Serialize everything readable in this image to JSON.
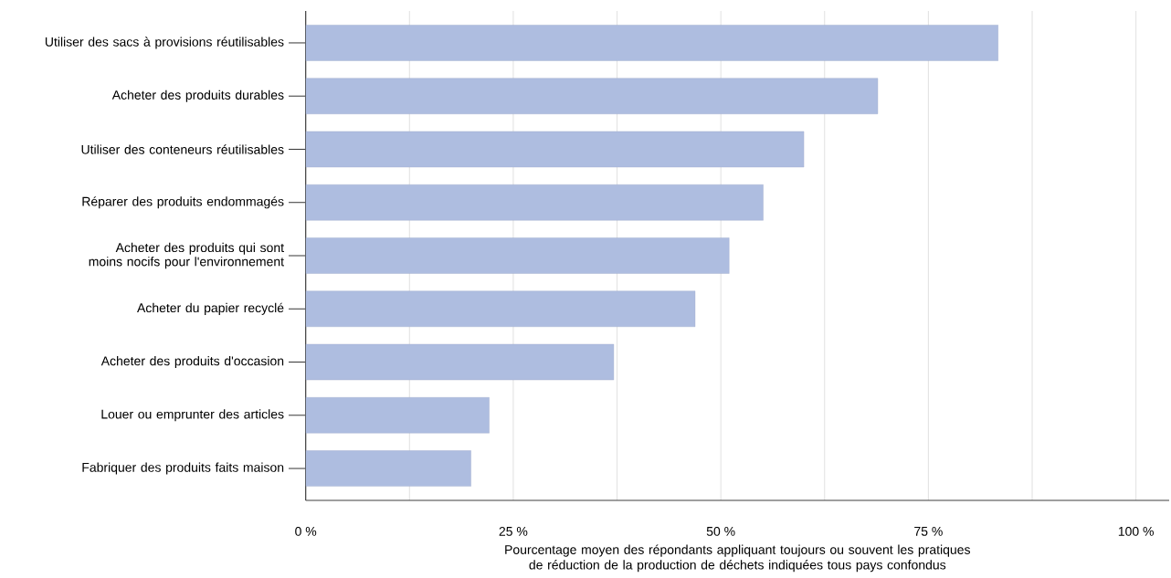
{
  "chart_data": {
    "type": "bar",
    "orientation": "horizontal",
    "xlabel": "Pourcentage moyen des répondants appliquant toujours ou souvent les pratiques de réduction de la production de déchets indiquées tous pays confondus",
    "categories": [
      "Utiliser des sacs à provisions réutilisables",
      "Acheter des produits durables",
      "Utiliser des conteneurs réutilisables",
      "Réparer des produits endommagés",
      "Acheter des produits qui sont moins nocifs pour l'environnement",
      "Acheter du papier recyclé",
      "Acheter des produits d'occasion",
      "Louer ou emprunter des articles",
      "Fabriquer des produits faits maison"
    ],
    "values": [
      83.4,
      68.9,
      60.0,
      55.1,
      51.0,
      46.9,
      37.1,
      22.1,
      19.9
    ],
    "color": "#aebde0",
    "xlim": [
      0,
      104
    ],
    "xticks": [
      {
        "value": 0,
        "label": "0 %"
      },
      {
        "value": 12.5,
        "label": null
      },
      {
        "value": 25,
        "label": "25 %"
      },
      {
        "value": 37.5,
        "label": null
      },
      {
        "value": 50,
        "label": "50 %"
      },
      {
        "value": 62.5,
        "label": null
      },
      {
        "value": 75,
        "label": "75 %"
      },
      {
        "value": 87.5,
        "label": null
      },
      {
        "value": 100,
        "label": "100 %"
      }
    ],
    "grid": "x"
  }
}
